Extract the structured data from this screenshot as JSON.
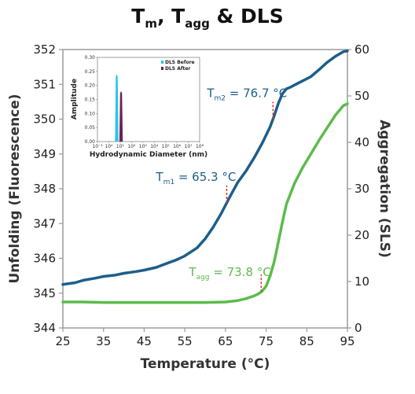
{
  "chart_data": {
    "type": "line",
    "title": {
      "t_main": "T",
      "m_sub": "m",
      "sep": ", ",
      "t2_main": "T",
      "agg_sub": "agg",
      "rest": " & DLS"
    },
    "xlabel": "Temperature (°C)",
    "ylabel_left": "Unfolding (Fluorescence)",
    "ylabel_right": "Aggregation (SLS)",
    "xlim": [
      25,
      95
    ],
    "ylim_left": [
      344,
      352
    ],
    "ylim_right": [
      0,
      60
    ],
    "x_ticks": [
      "25",
      "35",
      "45",
      "55",
      "65",
      "75",
      "85",
      "95"
    ],
    "y_left_ticks": [
      "344",
      "345",
      "346",
      "347",
      "348",
      "349",
      "350",
      "351",
      "352"
    ],
    "y_right_ticks": [
      "0",
      "10",
      "20",
      "30",
      "40",
      "50",
      "60"
    ],
    "grid": false,
    "series": [
      {
        "axis": "left",
        "color": "#1d5e8a",
        "x": [
          25,
          28,
          30,
          33,
          35,
          38,
          40,
          43,
          45,
          48,
          50,
          53,
          55,
          58,
          60,
          62,
          64,
          66,
          68,
          70,
          72,
          74,
          76,
          77,
          78,
          79,
          80,
          81,
          82,
          84,
          86,
          88,
          90,
          92,
          94,
          95
        ],
        "y": [
          345.25,
          345.3,
          345.37,
          345.43,
          345.48,
          345.52,
          345.57,
          345.62,
          345.66,
          345.74,
          345.83,
          345.96,
          346.07,
          346.3,
          346.56,
          346.9,
          347.3,
          347.75,
          348.18,
          348.5,
          348.88,
          349.3,
          349.78,
          350.1,
          350.45,
          350.73,
          350.87,
          350.92,
          350.98,
          351.1,
          351.22,
          351.42,
          351.63,
          351.8,
          351.94,
          351.96
        ]
      },
      {
        "axis": "right",
        "color": "#5dbb4c",
        "x": [
          25,
          30,
          35,
          40,
          45,
          50,
          55,
          60,
          65,
          68,
          70,
          72,
          73,
          74,
          75,
          76,
          77,
          78,
          79,
          80,
          82,
          84,
          86,
          88,
          90,
          92,
          94,
          95
        ],
        "y": [
          5.6,
          5.6,
          5.5,
          5.5,
          5.5,
          5.5,
          5.5,
          5.5,
          5.6,
          5.9,
          6.3,
          6.9,
          7.3,
          7.9,
          9.0,
          11.2,
          14.3,
          18.5,
          22.8,
          26.7,
          31.2,
          34.6,
          37.5,
          40.4,
          43.1,
          45.8,
          47.9,
          48.3
        ]
      }
    ],
    "annotations": [
      {
        "main": "T",
        "sub": "m1",
        "value": " = 65.3 °C",
        "x": 65.3,
        "axis": "left",
        "color": "#1d5e8a"
      },
      {
        "main": "T",
        "sub": "m2",
        "value": " = 76.7 °C",
        "x": 76.7,
        "axis": "left",
        "color": "#1d5e8a"
      },
      {
        "main": "T",
        "sub": "agg",
        "value": " = 73.8 °C",
        "x": 73.8,
        "axis": "right",
        "color": "#5dbb4c"
      }
    ],
    "inset": {
      "type": "bar",
      "xlabel": "Hydrodynamic Diameter (nm)",
      "ylabel": "Amplitude",
      "x_scale": "log",
      "xlim": [
        0.1,
        100000000
      ],
      "ylim": [
        0,
        0.3
      ],
      "x_ticks": [
        "10⁻¹",
        "10⁰",
        "10¹",
        "10²",
        "10³",
        "10⁴",
        "10⁵",
        "10⁶",
        "10⁷",
        "10⁸"
      ],
      "y_ticks": [
        "0.00",
        "0.05",
        "0.10",
        "0.15",
        "0.20",
        "0.25",
        "0.30"
      ],
      "legend": "top-right",
      "series": [
        {
          "name": "DLS Before",
          "color": "#29c4ec",
          "peak_x": 5,
          "peak_y": 0.24
        },
        {
          "name": "DLS After",
          "color": "#6e1f5c",
          "peak_x": 12,
          "peak_y": 0.18
        }
      ]
    }
  }
}
